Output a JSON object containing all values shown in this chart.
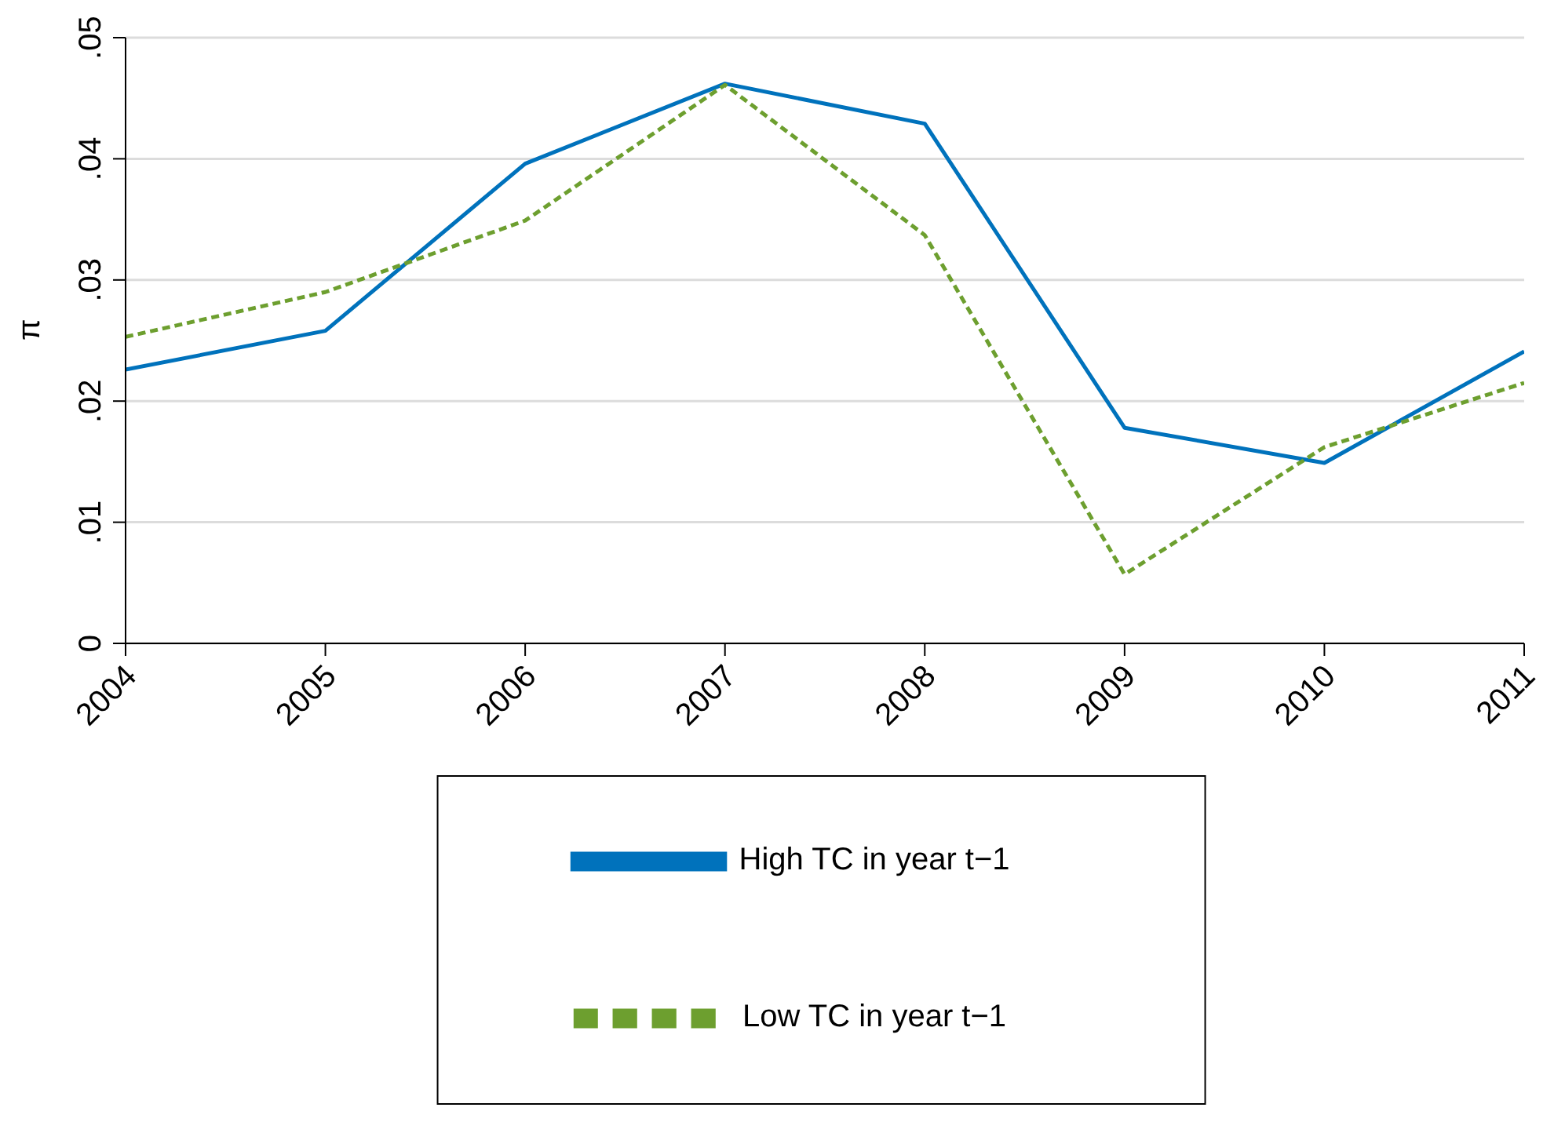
{
  "chart_data": {
    "type": "line",
    "ylabel": "π",
    "categories": [
      "2004",
      "2005",
      "2006",
      "2007",
      "2008",
      "2009",
      "2010",
      "2011"
    ],
    "series": [
      {
        "name": "High TC in year t−1",
        "color": "#0072bc",
        "line_style": "solid",
        "values": [
          0.0226,
          0.0258,
          0.0396,
          0.0462,
          0.0429,
          0.0178,
          0.0149,
          0.0241
        ]
      },
      {
        "name": "Low TC in year t−1",
        "color": "#6d9f2f",
        "line_style": "dashed",
        "values": [
          0.0253,
          0.029,
          0.0349,
          0.0461,
          0.0337,
          0.0057,
          0.0162,
          0.0215
        ]
      }
    ],
    "ylim": [
      0,
      0.05
    ],
    "yticks": [
      {
        "value": 0,
        "label": "0"
      },
      {
        "value": 0.01,
        "label": ".01"
      },
      {
        "value": 0.02,
        "label": ".02"
      },
      {
        "value": 0.03,
        "label": ".03"
      },
      {
        "value": 0.04,
        "label": ".04"
      },
      {
        "value": 0.05,
        "label": ".05"
      }
    ],
    "grid": "y",
    "legend": "bottom",
    "marker": "none"
  }
}
